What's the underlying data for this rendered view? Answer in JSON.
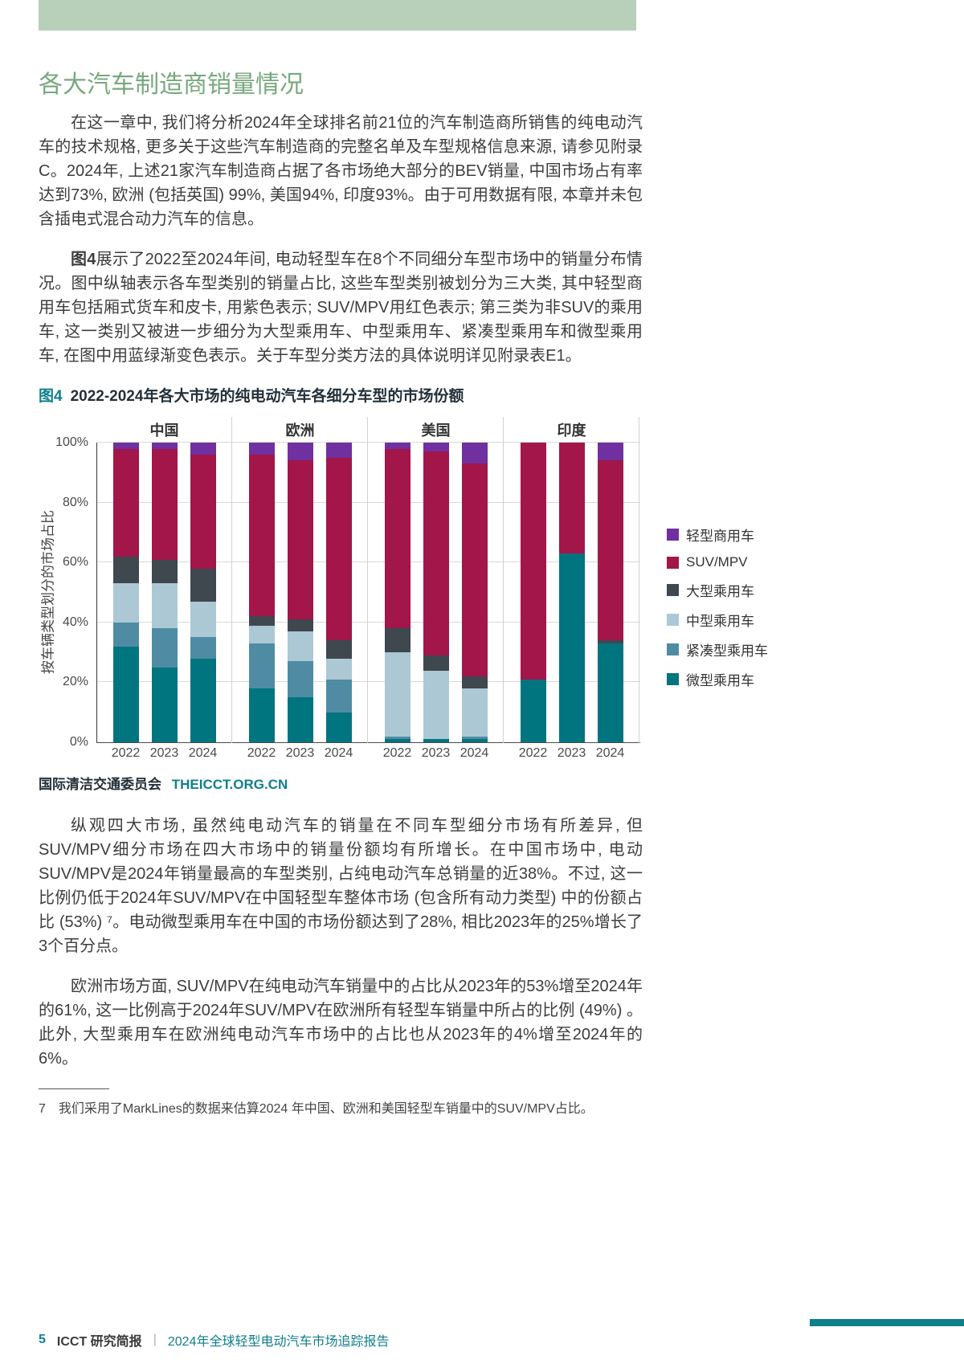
{
  "colors": {
    "top_bar": "#b8cfba",
    "heading_green": "#78a87e",
    "teal_accent": "#0f7f8c",
    "caption_dark": "#24303a",
    "body_text": "#3d3d3d"
  },
  "section": {
    "title": "各大汽车制造商销量情况"
  },
  "paragraphs": {
    "p1": "在这一章中, 我们将分析2024年全球排名前21位的汽车制造商所销售的纯电动汽车的技术规格, 更多关于这些汽车制造商的完整名单及车型规格信息来源, 请参见附录C。2024年, 上述21家汽车制造商占据了各市场绝大部分的BEV销量, 中国市场占有率达到73%, 欧洲 (包括英国) 99%, 美国94%, 印度93%。由于可用数据有限, 本章并未包含插电式混合动力汽车的信息。",
    "p2_bold": "图4",
    "p2_rest": "展示了2022至2024年间, 电动轻型车在8个不同细分车型市场中的销量分布情况。图中纵轴表示各车型类别的销量占比, 这些车型类别被划分为三大类, 其中轻型商用车包括厢式货车和皮卡, 用紫色表示; SUV/MPV用红色表示; 第三类为非SUV的乘用车, 这一类别又被进一步细分为大型乘用车、中型乘用车、紧凑型乘用车和微型乘用车, 在图中用蓝绿渐变色表示。关于车型分类方法的具体说明详见附录表E1。",
    "p3": "纵观四大市场, 虽然纯电动汽车的销量在不同车型细分市场有所差异, 但SUV/MPV细分市场在四大市场中的销量份额均有所增长。在中国市场中, 电动SUV/MPV是2024年销量最高的车型类别, 占纯电动汽车总销量的近38%。不过, 这一比例仍低于2024年SUV/MPV在中国轻型车整体市场 (包含所有动力类型) 中的份额占比 (53%) ⁷。电动微型乘用车在中国的市场份额达到了28%, 相比2023年的25%增长了3个百分点。",
    "p4": "欧洲市场方面, SUV/MPV在纯电动汽车销量中的占比从2023年的53%增至2024年的61%, 这一比例高于2024年SUV/MPV在欧洲所有轻型车销量中所占的比例 (49%) 。此外, 大型乘用车在欧洲纯电动汽车市场中的占比也从2023年的4%增至2024年的6%。"
  },
  "figure": {
    "label": "图4",
    "title": "2022-2024年各大市场的纯电动汽车各细分车型的市场份额",
    "source_org": "国际清洁交通委员会",
    "source_url": "THEICCT.ORG.CN"
  },
  "chart_data": {
    "type": "bar",
    "stacked": true,
    "unit": "%",
    "ylabel": "按车辆类型划分的市场占比",
    "ylim": [
      0,
      100
    ],
    "yticks": [
      0,
      20,
      40,
      60,
      80,
      100
    ],
    "groups": [
      "中国",
      "欧洲",
      "美国",
      "印度"
    ],
    "years": [
      "2022",
      "2023",
      "2024"
    ],
    "stack_order": "bottom_to_top",
    "series": [
      {
        "name": "微型乘用车",
        "color": "#00747f",
        "values": [
          [
            32,
            25,
            28
          ],
          [
            18,
            15,
            10
          ],
          [
            1,
            1,
            1
          ],
          [
            21,
            63,
            33
          ]
        ]
      },
      {
        "name": "紧凑型乘用车",
        "color": "#4f8ca4",
        "values": [
          [
            8,
            13,
            7
          ],
          [
            15,
            12,
            11
          ],
          [
            1,
            0,
            1
          ],
          [
            0,
            0,
            0
          ]
        ]
      },
      {
        "name": "中型乘用车",
        "color": "#abc8d4",
        "values": [
          [
            13,
            15,
            12
          ],
          [
            6,
            10,
            7
          ],
          [
            28,
            23,
            16
          ],
          [
            0,
            0,
            0
          ]
        ]
      },
      {
        "name": "大型乘用车",
        "color": "#3f474f",
        "values": [
          [
            9,
            8,
            11
          ],
          [
            3,
            4,
            6
          ],
          [
            8,
            5,
            4
          ],
          [
            0,
            0,
            1
          ]
        ]
      },
      {
        "name": "SUV/MPV",
        "color": "#a21649",
        "values": [
          [
            36,
            37,
            38
          ],
          [
            54,
            53,
            61
          ],
          [
            60,
            68,
            71
          ],
          [
            79,
            37,
            60
          ]
        ]
      },
      {
        "name": "轻型商用车",
        "color": "#7030a0",
        "values": [
          [
            2,
            2,
            4
          ],
          [
            4,
            6,
            5
          ],
          [
            2,
            3,
            7
          ],
          [
            0,
            0,
            6
          ]
        ]
      }
    ],
    "legend": [
      "轻型商用车",
      "SUV/MPV",
      "大型乘用车",
      "中型乘用车",
      "紧凑型乘用车",
      "微型乘用车"
    ],
    "legend_position": "right",
    "grid": true
  },
  "footnote": {
    "number": "7",
    "text": "我们采用了MarkLines的数据来估算2024 年中国、欧洲和美国轻型车销量中的SUV/MPV占比。"
  },
  "footer": {
    "page_number": "5",
    "brand": "ICCT 研究简报",
    "separator": "|",
    "title": "2024年全球轻型电动汽车市场追踪报告"
  }
}
